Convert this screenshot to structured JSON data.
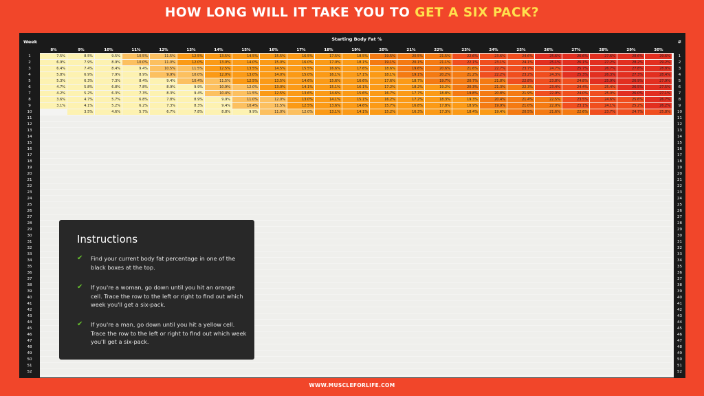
{
  "title": {
    "part1": "HOW LONG WILL IT TAKE YOU TO ",
    "part2": "GET A SIX PACK?"
  },
  "table": {
    "week_header": "Week",
    "hash_header": "#",
    "column_group_title": "Starting Body Fat %",
    "columns": [
      "8%",
      "9%",
      "10%",
      "11%",
      "12%",
      "13%",
      "14%",
      "15%",
      "16%",
      "17%",
      "18%",
      "19%",
      "20%",
      "21%",
      "22%",
      "23%",
      "24%",
      "25%",
      "26%",
      "27%",
      "28%",
      "29%",
      "30%"
    ],
    "weeks": [
      "1",
      "2",
      "3",
      "4",
      "5",
      "6",
      "7",
      "8",
      "9",
      "10",
      "11",
      "12",
      "13",
      "14",
      "15",
      "16",
      "17",
      "18",
      "19",
      "20",
      "21",
      "22",
      "23",
      "24",
      "25",
      "26",
      "27",
      "28",
      "29",
      "30",
      "31",
      "32",
      "33",
      "34",
      "35",
      "36",
      "37",
      "38",
      "39",
      "40",
      "41",
      "42",
      "43",
      "44",
      "45",
      "46",
      "47",
      "48",
      "49",
      "50",
      "51",
      "52"
    ],
    "first_row_values": [
      [
        "7.5%",
        "8.5%",
        "9.5%",
        "10.5%",
        "11.5%",
        "12.5%",
        "13.5%",
        "14.5%",
        "15.5%",
        "16.5%",
        "17.5%",
        "18.5%",
        "19.5%",
        "20.5%",
        "21.5%",
        "22.6%",
        "23.6%",
        "24.6%",
        "25.6%",
        "26.6%",
        "27.6%",
        "28.6%",
        "29.6%"
      ],
      [
        "6.9%",
        "7.9%",
        "8.9%",
        "10.0%",
        "11.0%",
        "12.0%",
        "13.0%",
        "14.0%",
        "15.0%",
        "16.0%",
        "17.0%",
        "18.1%",
        "19.1%",
        "20.1%",
        "21.1%",
        "22.1%",
        "23.1%",
        "24.1%",
        "25.1%",
        "26.1%",
        "27.2%",
        "28.2%",
        "29.2%"
      ],
      [
        "6.4%",
        "7.4%",
        "8.4%",
        "9.4%",
        "10.5%",
        "11.5%",
        "12.5%",
        "13.5%",
        "14.5%",
        "15.5%",
        "16.6%",
        "17.6%",
        "18.6%",
        "19.6%",
        "20.6%",
        "21.6%",
        "22.7%",
        "23.7%",
        "24.7%",
        "25.7%",
        "26.7%",
        "27.8%",
        "28.8%"
      ],
      [
        "5.8%",
        "6.9%",
        "7.9%",
        "8.9%",
        "9.9%",
        "10.0%",
        "12.0%",
        "13.0%",
        "14.0%",
        "15.0%",
        "16.1%",
        "17.1%",
        "18.1%",
        "19.1%",
        "20.2%",
        "21.2%",
        "22.2%",
        "23.2%",
        "24.3%",
        "25.3%",
        "26.3%",
        "27.3%",
        "28.4%"
      ],
      [
        "5.3%",
        "6.3%",
        "7.3%",
        "8.4%",
        "9.4%",
        "10.4%",
        "11.5%",
        "12.5%",
        "13.5%",
        "14.6%",
        "15.6%",
        "16.6%",
        "17.6%",
        "18.7%",
        "19.7%",
        "20.7%",
        "21.8%",
        "22.8%",
        "23.8%",
        "24.8%",
        "25.9%",
        "26.9%",
        "27.9%"
      ],
      [
        "4.7%",
        "5.8%",
        "6.8%",
        "7.8%",
        "8.9%",
        "9.9%",
        "10.9%",
        "12.0%",
        "13.0%",
        "14.1%",
        "15.1%",
        "16.1%",
        "17.2%",
        "18.2%",
        "19.2%",
        "20.3%",
        "21.3%",
        "22.3%",
        "23.4%",
        "24.4%",
        "25.4%",
        "26.5%",
        "27.5%"
      ],
      [
        "4.2%",
        "5.2%",
        "6.3%",
        "7.3%",
        "8.3%",
        "9.4%",
        "10.4%",
        "11.5%",
        "12.5%",
        "13.6%",
        "14.6%",
        "15.6%",
        "16.7%",
        "17.7%",
        "18.8%",
        "19.8%",
        "20.8%",
        "21.9%",
        "22.9%",
        "24.0%",
        "25.0%",
        "26.0%",
        "27.1%"
      ],
      [
        "3.6%",
        "4.7%",
        "5.7%",
        "6.8%",
        "7.8%",
        "8.9%",
        "9.9%",
        "11.0%",
        "12.0%",
        "13.0%",
        "14.1%",
        "15.1%",
        "16.2%",
        "17.2%",
        "18.3%",
        "19.3%",
        "20.4%",
        "21.4%",
        "22.5%",
        "23.5%",
        "24.6%",
        "25.6%",
        "26.7%"
      ],
      [
        "3.1%",
        "4.1%",
        "5.2%",
        "6.2%",
        "7.3%",
        "8.3%",
        "9.4%",
        "10.4%",
        "11.5%",
        "12.5%",
        "13.6%",
        "14.6%",
        "15.7%",
        "16.8%",
        "17.8%",
        "18.9%",
        "19.9%",
        "21.0%",
        "22.0%",
        "23.1%",
        "24.1%",
        "25.2%",
        "26.2%"
      ],
      [
        "",
        "3.5%",
        "4.6%",
        "5.7%",
        "6.7%",
        "7.8%",
        "8.8%",
        "9.9%",
        "11.0%",
        "12.0%",
        "13.1%",
        "14.1%",
        "15.2%",
        "16.3%",
        "17.3%",
        "18.4%",
        "19.4%",
        "20.5%",
        "21.6%",
        "22.6%",
        "23.7%",
        "24.7%",
        "25.8%"
      ]
    ]
  },
  "instructions": {
    "title": "Instructions",
    "items": [
      "Find your current body fat percentage in one of the black boxes at the top.",
      "If you're a woman, go down until you hit an orange cell. Trace the row to the left or right to find out which week you'll get a six-pack.",
      "If you're a man, go down until you hit a yellow cell. Trace the row to the left or right to find out which week you'll get a six-pack."
    ],
    "check_icon": "check-icon"
  },
  "footer": "WWW.MUSCLEFORLIFE.COM",
  "colors": {
    "background": "#f1462a",
    "yellow": "#fdf2b1",
    "light_orange": "#fcc060",
    "orange": "#fb9a16",
    "dark_orange": "#f47a12",
    "red_orange": "#f04e1e",
    "red": "#e22f20",
    "empty": "#f4f4f2",
    "accent_text": "#ffe04d",
    "check": "#68c42e"
  }
}
